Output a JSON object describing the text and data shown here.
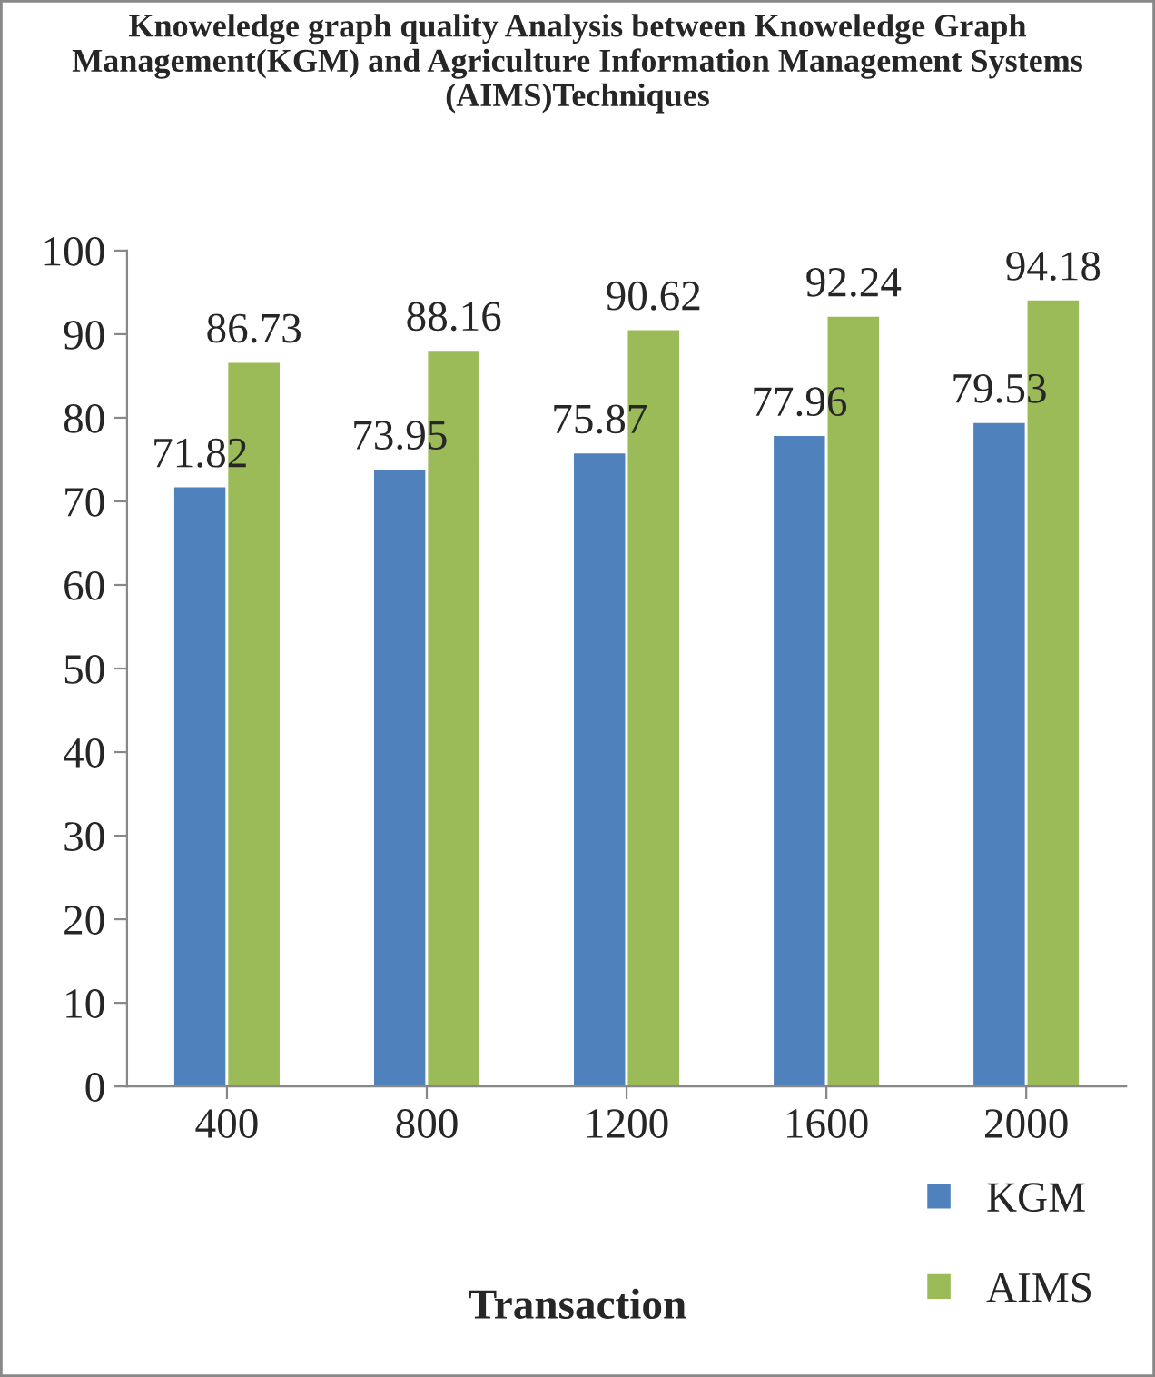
{
  "chart_data": {
    "type": "bar",
    "title": "Knoweledge graph quality Analysis between Knoweledge Graph Management(KGM) and Agriculture Information Management Systems (AIMS)Techniques",
    "xlabel": "Transaction",
    "categories": [
      "400",
      "800",
      "1200",
      "1600",
      "2000"
    ],
    "series": [
      {
        "name": "KGM",
        "color": "#4f81bd",
        "values": [
          71.82,
          73.95,
          75.87,
          77.96,
          79.53
        ]
      },
      {
        "name": "AIMS",
        "color": "#9bbb59",
        "values": [
          86.73,
          88.16,
          90.62,
          92.24,
          94.18
        ]
      }
    ],
    "ylim": [
      0,
      100
    ],
    "yticks": [
      0,
      10,
      20,
      30,
      40,
      50,
      60,
      70,
      80,
      90,
      100
    ],
    "grid": false,
    "legend": "bottom right",
    "data_labels": true
  }
}
